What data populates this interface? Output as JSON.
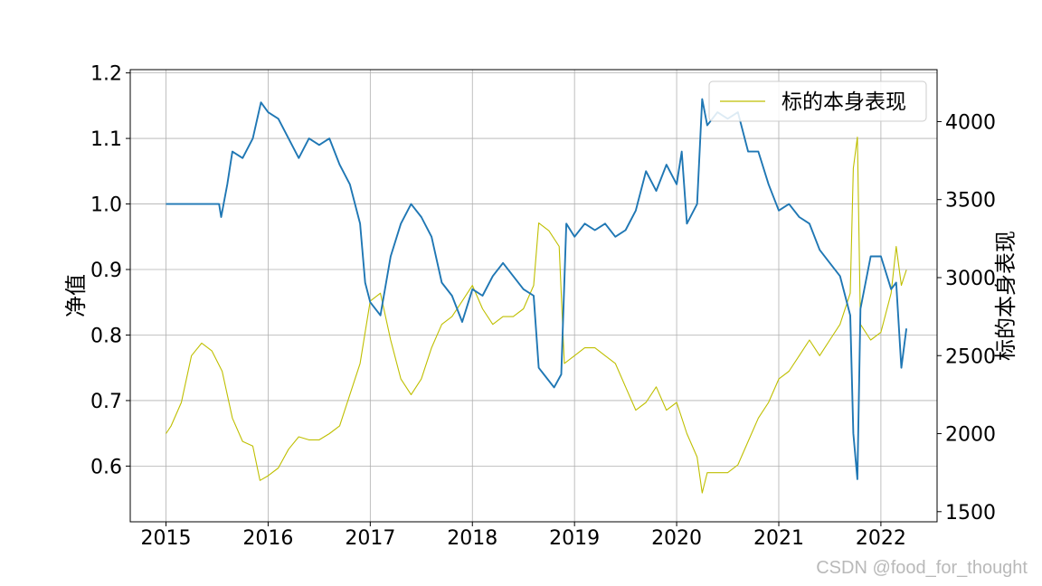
{
  "chart_data": {
    "type": "line",
    "title": "",
    "xlabel": "",
    "ylabel": "净值",
    "ylabel_right": "标的本身表现",
    "x_ticks": [
      "2015",
      "2016",
      "2017",
      "2018",
      "2019",
      "2020",
      "2021",
      "2022"
    ],
    "y_ticks_left": [
      "0.6",
      "0.7",
      "0.8",
      "0.9",
      "1.0",
      "1.1",
      "1.2"
    ],
    "y_ticks_right": [
      "1500",
      "2000",
      "2500",
      "3000",
      "3500",
      "4000"
    ],
    "xlim": [
      2014.65,
      2022.55
    ],
    "ylim_left": [
      0.515,
      1.205
    ],
    "ylim_right": [
      1435,
      4333
    ],
    "grid": true,
    "legend_position": "top-right",
    "series": [
      {
        "axis": "left",
        "color": "#1f77b4",
        "points": [
          [
            2015.0,
            1.0
          ],
          [
            2015.3,
            1.0
          ],
          [
            2015.52,
            1.0
          ],
          [
            2015.54,
            0.98
          ],
          [
            2015.6,
            1.03
          ],
          [
            2015.65,
            1.08
          ],
          [
            2015.75,
            1.07
          ],
          [
            2015.85,
            1.1
          ],
          [
            2015.93,
            1.155
          ],
          [
            2016.0,
            1.14
          ],
          [
            2016.1,
            1.13
          ],
          [
            2016.2,
            1.1
          ],
          [
            2016.3,
            1.07
          ],
          [
            2016.4,
            1.1
          ],
          [
            2016.5,
            1.09
          ],
          [
            2016.6,
            1.1
          ],
          [
            2016.7,
            1.06
          ],
          [
            2016.8,
            1.03
          ],
          [
            2016.9,
            0.97
          ],
          [
            2016.95,
            0.88
          ],
          [
            2017.0,
            0.85
          ],
          [
            2017.1,
            0.83
          ],
          [
            2017.2,
            0.92
          ],
          [
            2017.3,
            0.97
          ],
          [
            2017.4,
            1.0
          ],
          [
            2017.5,
            0.98
          ],
          [
            2017.6,
            0.95
          ],
          [
            2017.7,
            0.88
          ],
          [
            2017.8,
            0.86
          ],
          [
            2017.9,
            0.82
          ],
          [
            2018.0,
            0.87
          ],
          [
            2018.1,
            0.86
          ],
          [
            2018.2,
            0.89
          ],
          [
            2018.3,
            0.91
          ],
          [
            2018.4,
            0.89
          ],
          [
            2018.5,
            0.87
          ],
          [
            2018.6,
            0.86
          ],
          [
            2018.65,
            0.75
          ],
          [
            2018.7,
            0.74
          ],
          [
            2018.8,
            0.72
          ],
          [
            2018.87,
            0.74
          ],
          [
            2018.92,
            0.97
          ],
          [
            2019.0,
            0.95
          ],
          [
            2019.1,
            0.97
          ],
          [
            2019.2,
            0.96
          ],
          [
            2019.3,
            0.97
          ],
          [
            2019.4,
            0.95
          ],
          [
            2019.5,
            0.96
          ],
          [
            2019.6,
            0.99
          ],
          [
            2019.7,
            1.05
          ],
          [
            2019.8,
            1.02
          ],
          [
            2019.9,
            1.06
          ],
          [
            2020.0,
            1.03
          ],
          [
            2020.05,
            1.08
          ],
          [
            2020.1,
            0.97
          ],
          [
            2020.2,
            1.0
          ],
          [
            2020.25,
            1.16
          ],
          [
            2020.3,
            1.12
          ],
          [
            2020.4,
            1.14
          ],
          [
            2020.5,
            1.13
          ],
          [
            2020.6,
            1.14
          ],
          [
            2020.7,
            1.08
          ],
          [
            2020.8,
            1.08
          ],
          [
            2020.9,
            1.03
          ],
          [
            2021.0,
            0.99
          ],
          [
            2021.1,
            1.0
          ],
          [
            2021.2,
            0.98
          ],
          [
            2021.3,
            0.97
          ],
          [
            2021.4,
            0.93
          ],
          [
            2021.5,
            0.91
          ],
          [
            2021.6,
            0.89
          ],
          [
            2021.7,
            0.83
          ],
          [
            2021.73,
            0.65
          ],
          [
            2021.77,
            0.58
          ],
          [
            2021.8,
            0.84
          ],
          [
            2021.9,
            0.92
          ],
          [
            2022.0,
            0.92
          ],
          [
            2022.1,
            0.87
          ],
          [
            2022.15,
            0.88
          ],
          [
            2022.2,
            0.75
          ],
          [
            2022.25,
            0.81
          ]
        ]
      },
      {
        "axis": "right",
        "name": "标的本身表现",
        "color": "#bfbf00",
        "points": [
          [
            2015.0,
            2000
          ],
          [
            2015.05,
            2050
          ],
          [
            2015.15,
            2200
          ],
          [
            2015.25,
            2500
          ],
          [
            2015.35,
            2580
          ],
          [
            2015.45,
            2530
          ],
          [
            2015.55,
            2400
          ],
          [
            2015.65,
            2100
          ],
          [
            2015.75,
            1950
          ],
          [
            2015.85,
            1920
          ],
          [
            2015.92,
            1700
          ],
          [
            2016.0,
            1730
          ],
          [
            2016.1,
            1780
          ],
          [
            2016.2,
            1900
          ],
          [
            2016.3,
            1980
          ],
          [
            2016.4,
            1960
          ],
          [
            2016.5,
            1960
          ],
          [
            2016.6,
            2000
          ],
          [
            2016.7,
            2050
          ],
          [
            2016.8,
            2250
          ],
          [
            2016.9,
            2450
          ],
          [
            2017.0,
            2850
          ],
          [
            2017.1,
            2900
          ],
          [
            2017.2,
            2600
          ],
          [
            2017.3,
            2350
          ],
          [
            2017.4,
            2250
          ],
          [
            2017.5,
            2350
          ],
          [
            2017.6,
            2550
          ],
          [
            2017.7,
            2700
          ],
          [
            2017.8,
            2750
          ],
          [
            2017.9,
            2850
          ],
          [
            2018.0,
            2950
          ],
          [
            2018.1,
            2800
          ],
          [
            2018.2,
            2700
          ],
          [
            2018.3,
            2750
          ],
          [
            2018.4,
            2750
          ],
          [
            2018.5,
            2800
          ],
          [
            2018.6,
            2950
          ],
          [
            2018.65,
            3350
          ],
          [
            2018.75,
            3300
          ],
          [
            2018.85,
            3200
          ],
          [
            2018.9,
            2450
          ],
          [
            2019.0,
            2500
          ],
          [
            2019.1,
            2550
          ],
          [
            2019.2,
            2550
          ],
          [
            2019.3,
            2500
          ],
          [
            2019.4,
            2450
          ],
          [
            2019.5,
            2300
          ],
          [
            2019.6,
            2150
          ],
          [
            2019.7,
            2200
          ],
          [
            2019.8,
            2300
          ],
          [
            2019.9,
            2150
          ],
          [
            2020.0,
            2200
          ],
          [
            2020.1,
            2000
          ],
          [
            2020.2,
            1850
          ],
          [
            2020.25,
            1620
          ],
          [
            2020.3,
            1750
          ],
          [
            2020.4,
            1750
          ],
          [
            2020.5,
            1750
          ],
          [
            2020.6,
            1800
          ],
          [
            2020.7,
            1950
          ],
          [
            2020.8,
            2100
          ],
          [
            2020.9,
            2200
          ],
          [
            2021.0,
            2350
          ],
          [
            2021.1,
            2400
          ],
          [
            2021.2,
            2500
          ],
          [
            2021.3,
            2600
          ],
          [
            2021.4,
            2500
          ],
          [
            2021.5,
            2600
          ],
          [
            2021.6,
            2700
          ],
          [
            2021.7,
            2900
          ],
          [
            2021.73,
            3700
          ],
          [
            2021.77,
            3900
          ],
          [
            2021.8,
            2700
          ],
          [
            2021.9,
            2600
          ],
          [
            2022.0,
            2650
          ],
          [
            2022.1,
            2900
          ],
          [
            2022.15,
            3200
          ],
          [
            2022.2,
            2950
          ],
          [
            2022.25,
            3050
          ]
        ]
      }
    ],
    "watermark": "CSDN @food_for_thought"
  }
}
